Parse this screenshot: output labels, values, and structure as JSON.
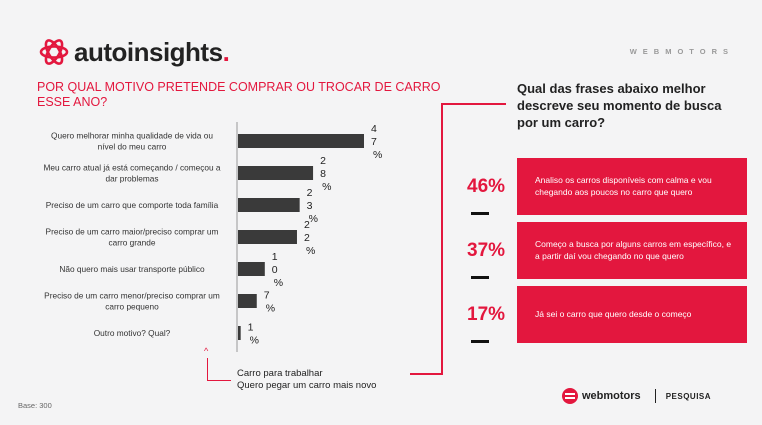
{
  "brand": {
    "logo_text": "autoinsights",
    "logo_dot": ".",
    "watermark": "WEBMOTORS",
    "footer_brand": "webmotors",
    "footer_section": "PESQUISA",
    "accent_color": "#e3173e"
  },
  "left_question": "POR QUAL MOTIVO PRETENDE COMPRAR OU TROCAR DE CARRO ESSE ANO?",
  "chart_data": {
    "type": "bar",
    "orientation": "horizontal",
    "categories": [
      "Quero melhorar minha qualidade de vida ou nível do meu carro",
      "Meu carro atual já está começando / começou a dar problemas",
      "Preciso de um carro que comporte toda família",
      "Preciso de um carro maior/preciso comprar um carro grande",
      "Não quero mais usar transporte público",
      "Preciso de um carro menor/preciso comprar um carro pequeno",
      "Outro motivo? Qual?"
    ],
    "values": [
      47,
      28,
      23,
      22,
      10,
      7,
      1
    ],
    "value_labels": [
      [
        "4",
        "7",
        "%"
      ],
      [
        "2",
        "8",
        "%"
      ],
      [
        "2",
        "3",
        "%"
      ],
      [
        "2",
        "2",
        "%"
      ],
      [
        "1",
        "0",
        "%"
      ],
      [
        "7",
        "%"
      ],
      [
        "1",
        "%"
      ]
    ],
    "bar_color": "#3a3a3a",
    "xlim": [
      0,
      50
    ]
  },
  "annotation": {
    "arrow": "^",
    "lines": [
      "Carro para trabalhar",
      "Quero pegar um carro mais novo"
    ]
  },
  "right_question": "Qual das frases abaixo melhor descreve seu momento de busca por um carro?",
  "options": [
    {
      "pct": "46%",
      "text": "Analiso os carros disponíveis com calma e vou chegando aos poucos no carro que quero"
    },
    {
      "pct": "37%",
      "text": "Começo a busca por alguns carros em específico, e a partir daí vou chegando no que quero"
    },
    {
      "pct": "17%",
      "text": "Já sei o carro que quero desde o começo"
    }
  ],
  "base": "Base: 300"
}
